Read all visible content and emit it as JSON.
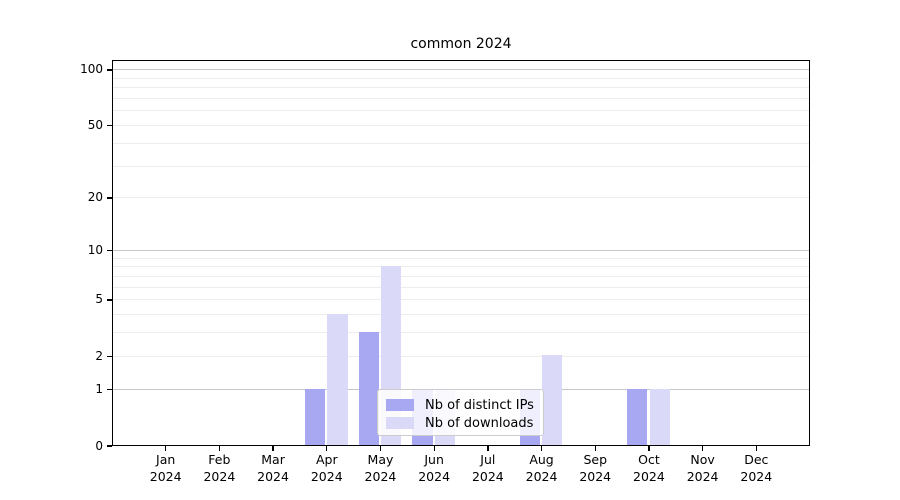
{
  "chart_data": {
    "type": "bar",
    "title": "common 2024",
    "categories": [
      "Jan\n2024",
      "Feb\n2024",
      "Mar\n2024",
      "Apr\n2024",
      "May\n2024",
      "Jun\n2024",
      "Jul\n2024",
      "Aug\n2024",
      "Sep\n2024",
      "Oct\n2024",
      "Nov\n2024",
      "Dec\n2024"
    ],
    "series": [
      {
        "name": "Nb of distinct IPs",
        "color": "#a7a7f2",
        "values": [
          0,
          0,
          0,
          1,
          3,
          1,
          0,
          1,
          0,
          1,
          0,
          0
        ]
      },
      {
        "name": "Nb of downloads",
        "color": "#dadaf8",
        "values": [
          0,
          0,
          0,
          4,
          8,
          1,
          0,
          2,
          0,
          1,
          0,
          0
        ]
      }
    ],
    "yscale": "log1p",
    "ylim": [
      0,
      113
    ],
    "yticks": [
      0,
      1,
      2,
      5,
      10,
      20,
      50,
      100
    ],
    "gridlines_major": [
      1,
      10,
      100
    ],
    "gridlines_minor": [
      2,
      3,
      4,
      5,
      6,
      7,
      8,
      9,
      20,
      30,
      40,
      50,
      60,
      70,
      80,
      90
    ],
    "grid": "horizontal",
    "legend_position": "inside-bottom-center",
    "colors": {
      "spine": "#000000",
      "grid_minor": "#ededed",
      "grid_major": "#c6c6c6",
      "legend_border": "#cccccc"
    }
  }
}
